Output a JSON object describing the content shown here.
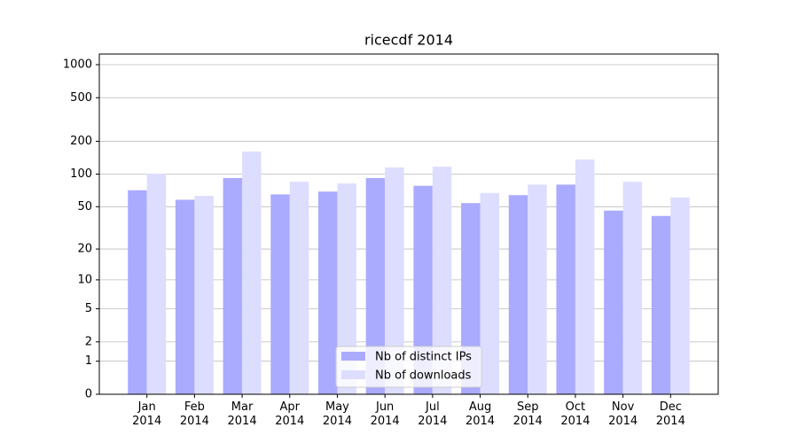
{
  "chart_data": {
    "type": "bar",
    "title": "ricecdf 2014",
    "categories": [
      "Jan\n2014",
      "Feb\n2014",
      "Mar\n2014",
      "Apr\n2014",
      "May\n2014",
      "Jun\n2014",
      "Jul\n2014",
      "Aug\n2014",
      "Sep\n2014",
      "Oct\n2014",
      "Nov\n2014",
      "Dec\n2014"
    ],
    "series": [
      {
        "name": "Nb of distinct IPs",
        "color": "#aaaaff",
        "values": [
          71,
          58,
          92,
          65,
          69,
          92,
          78,
          54,
          64,
          80,
          46,
          41
        ]
      },
      {
        "name": "Nb of downloads",
        "color": "#ddddff",
        "values": [
          101,
          63,
          161,
          85,
          82,
          115,
          117,
          67,
          80,
          136,
          85,
          61
        ]
      }
    ],
    "scale": "log1p",
    "ylim": [
      0,
      1250
    ],
    "yticks": [
      0,
      1,
      2,
      5,
      10,
      20,
      50,
      100,
      200,
      500,
      1000
    ],
    "grid": true,
    "legend": "lower center"
  }
}
